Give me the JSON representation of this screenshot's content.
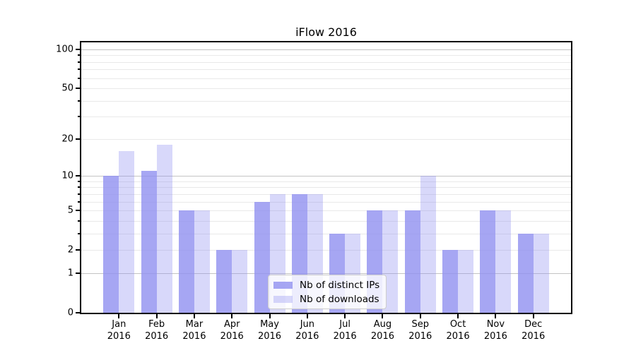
{
  "title": "iFlow 2016",
  "chart_data": {
    "type": "bar",
    "title": "iFlow 2016",
    "categories": [
      "Jan 2016",
      "Feb 2016",
      "Mar 2016",
      "Apr 2016",
      "May 2016",
      "Jun 2016",
      "Jul 2016",
      "Aug 2016",
      "Sep 2016",
      "Oct 2016",
      "Nov 2016",
      "Dec 2016"
    ],
    "series": [
      {
        "name": "Nb of distinct IPs",
        "color": "rgba(144,144,240,0.80)",
        "values": [
          10,
          11,
          5,
          2,
          6,
          7,
          3,
          5,
          5,
          2,
          5,
          3
        ]
      },
      {
        "name": "Nb of downloads",
        "color": "rgba(144,144,240,0.35)",
        "values": [
          16,
          18,
          5,
          2,
          7,
          7,
          3,
          5,
          10,
          2,
          5,
          3
        ]
      }
    ],
    "xlabel": "",
    "ylabel": "",
    "yscale": "symlog",
    "ylim": [
      0,
      113
    ],
    "y_tick_labels": [
      0,
      1,
      2,
      5,
      10,
      20,
      50,
      100
    ],
    "y_major_gridlines": [
      1,
      10,
      100
    ],
    "y_minor_gridlines": [
      2,
      3,
      4,
      5,
      6,
      7,
      8,
      9,
      20,
      30,
      40,
      50,
      60,
      70,
      80,
      90
    ],
    "grid": true,
    "legend_position": "lower center",
    "colors": {
      "major_grid": "#c3c3c3",
      "minor_grid": "#e9e9e9",
      "axis": "#000000",
      "background": "#ffffff"
    }
  }
}
